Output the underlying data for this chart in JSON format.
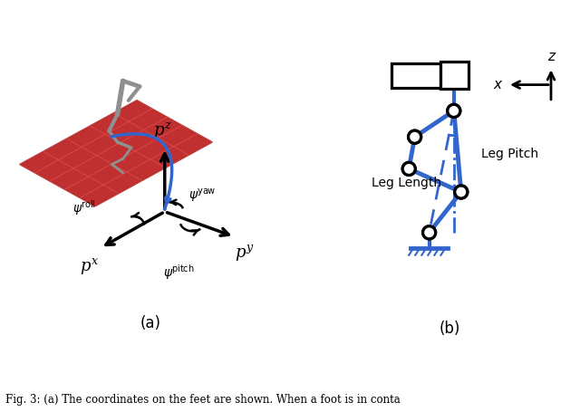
{
  "fig_width": 6.4,
  "fig_height": 4.55,
  "bg_color": "#ffffff",
  "blue_color": "#3366CC",
  "black_color": "#000000",
  "caption": "Fig. 3: (a) The coordinates on the feet are shown. When a foot is in conta",
  "label_a": "(a)",
  "label_b": "(b)",
  "leg_pitch_label": "Leg Pitch",
  "leg_length_label": "Leg Length",
  "axis_z": "z",
  "axis_x": "x",
  "robot_image_present": true
}
